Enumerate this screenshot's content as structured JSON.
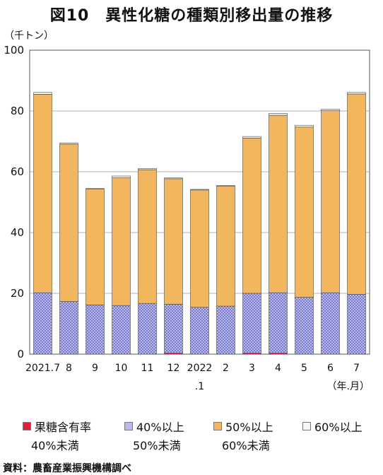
{
  "title": "図10　異性化糖の種類別移出量の推移",
  "unit_label": "（千トン）",
  "source": "資料：農畜産業振興機構調べ",
  "colors": {
    "fructose_40": "#e0203a",
    "fructose_40_50": "#b9b9ec",
    "fructose_40_50_pattern": "#5050b8",
    "fructose_50_60": "#f2b65e",
    "fructose_60": "#f7f7f7",
    "grid": "#999999"
  },
  "legend": [
    {
      "line1": "果糖含有率",
      "line2": "40%未満"
    },
    {
      "line1": "40%以上",
      "line2": "50%未満"
    },
    {
      "line1": "50%以上",
      "line2": "60%未満"
    },
    {
      "line1": "60%以上",
      "line2": ""
    }
  ],
  "chart_data": {
    "type": "bar",
    "stacked": true,
    "title": "図10　異性化糖の種類別移出量の推移",
    "ylabel": "（千トン）",
    "xlabel": "（年.月）",
    "ylim": [
      0,
      100
    ],
    "yticks": [
      0,
      20,
      40,
      60,
      80,
      100
    ],
    "grid": true,
    "legend_position": "bottom",
    "categories": [
      "2021.7",
      "8",
      "9",
      "10",
      "11",
      "12",
      "2022\n.1",
      "2",
      "3",
      "4",
      "5",
      "6",
      "7"
    ],
    "series": [
      {
        "name": "果糖含有率40%未満",
        "values": [
          0,
          0,
          0,
          0,
          0,
          0.3,
          0,
          0,
          0.3,
          0.3,
          0,
          0,
          0
        ]
      },
      {
        "name": "40%以上50%未満",
        "values": [
          20.2,
          17.3,
          16.2,
          16.0,
          16.7,
          16.1,
          15.4,
          15.8,
          19.7,
          19.9,
          18.7,
          20.2,
          19.7
        ]
      },
      {
        "name": "50%以上60%未満",
        "values": [
          65.3,
          51.8,
          38.1,
          42.0,
          44.0,
          41.3,
          38.6,
          39.5,
          51.1,
          58.4,
          56.0,
          59.9,
          65.9
        ]
      },
      {
        "name": "60%以上",
        "values": [
          0.6,
          0.4,
          0.2,
          0.6,
          0.4,
          0.3,
          0.2,
          0.2,
          0.5,
          0.6,
          0.6,
          0.5,
          0.5
        ]
      }
    ]
  }
}
